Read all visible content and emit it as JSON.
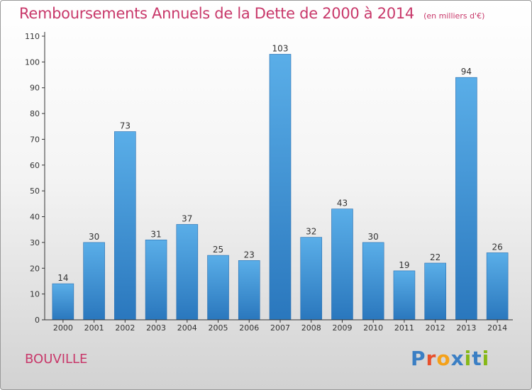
{
  "header": {
    "title": "Remboursements Annuels de la Dette de 2000 à 2014",
    "subtitle": "(en milliers d'€)"
  },
  "footer": {
    "town": "BOUVILLE",
    "logo": {
      "letters": [
        "P",
        "r",
        "o",
        "x",
        "i",
        "t",
        "i"
      ],
      "colors": [
        "#3b7fc4",
        "#e7502c",
        "#f4a11a",
        "#3b7fc4",
        "#86b817",
        "#3b7fc4",
        "#86b817"
      ]
    }
  },
  "chart_data": {
    "type": "bar",
    "title": "Remboursements Annuels de la Dette de 2000 à 2014",
    "subtitle": "(en milliers d'€)",
    "categories": [
      "2000",
      "2001",
      "2002",
      "2003",
      "2004",
      "2005",
      "2006",
      "2007",
      "2008",
      "2009",
      "2010",
      "2011",
      "2012",
      "2013",
      "2014"
    ],
    "values": [
      14,
      30,
      73,
      31,
      37,
      25,
      23,
      103,
      32,
      43,
      30,
      19,
      22,
      94,
      26
    ],
    "ylim": [
      0,
      110
    ],
    "yticks": [
      0,
      10,
      20,
      30,
      40,
      50,
      60,
      70,
      80,
      90,
      100,
      110
    ],
    "grid": false,
    "colors": {
      "bar_light": "#5aaee8",
      "bar_dark": "#2a77bd",
      "axis": "#333333"
    }
  }
}
